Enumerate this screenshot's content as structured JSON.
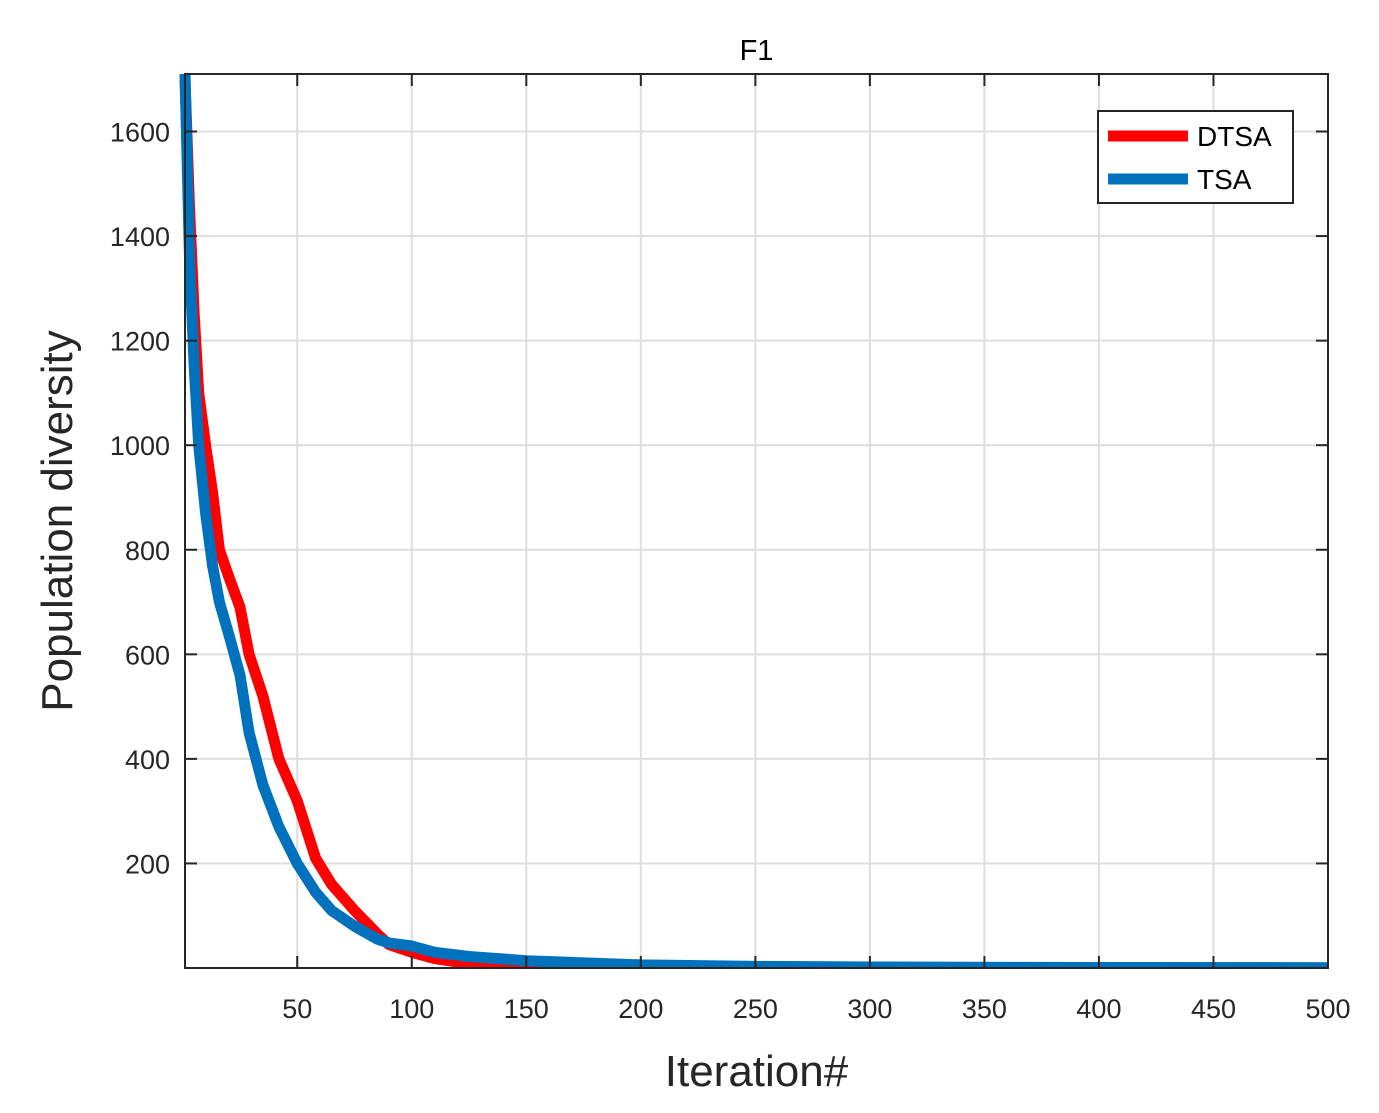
{
  "chart_data": {
    "type": "line",
    "title": "F1",
    "xlabel": "Iteration#",
    "ylabel": "Population diversity",
    "xlim": [
      1,
      500
    ],
    "ylim": [
      0,
      1710
    ],
    "grid": true,
    "legend_position": "northeast",
    "x_ticks": [
      50,
      100,
      150,
      200,
      250,
      300,
      350,
      400,
      450,
      500
    ],
    "y_ticks": [
      200,
      400,
      600,
      800,
      1000,
      1200,
      1400,
      1600
    ],
    "x_tick_labels": [
      "50",
      "100",
      "150",
      "200",
      "250",
      "300",
      "350",
      "400",
      "450",
      "500"
    ],
    "y_tick_labels": [
      "200",
      "400",
      "600",
      "800",
      "1000",
      "1200",
      "1400",
      "1600"
    ],
    "x": [
      1,
      3,
      5,
      7,
      10,
      13,
      16,
      20,
      25,
      29,
      35,
      42,
      50,
      58,
      65,
      75,
      85,
      90,
      100,
      110,
      125,
      150,
      200,
      250,
      300,
      400,
      500
    ],
    "series": [
      {
        "name": "DTSA",
        "color": "#FF0000",
        "values": [
          1700,
          1450,
          1250,
          1100,
          1000,
          910,
          800,
          750,
          690,
          600,
          520,
          400,
          320,
          210,
          160,
          110,
          65,
          45,
          30,
          18,
          8,
          3,
          1,
          0.5,
          0.3,
          0.2,
          0.1
        ]
      },
      {
        "name": "TSA",
        "color": "#0072BD",
        "values": [
          1710,
          1350,
          1150,
          1000,
          870,
          770,
          700,
          640,
          560,
          450,
          350,
          270,
          200,
          145,
          110,
          80,
          55,
          48,
          42,
          30,
          22,
          14,
          6,
          3,
          2,
          1,
          0.5
        ]
      }
    ]
  }
}
